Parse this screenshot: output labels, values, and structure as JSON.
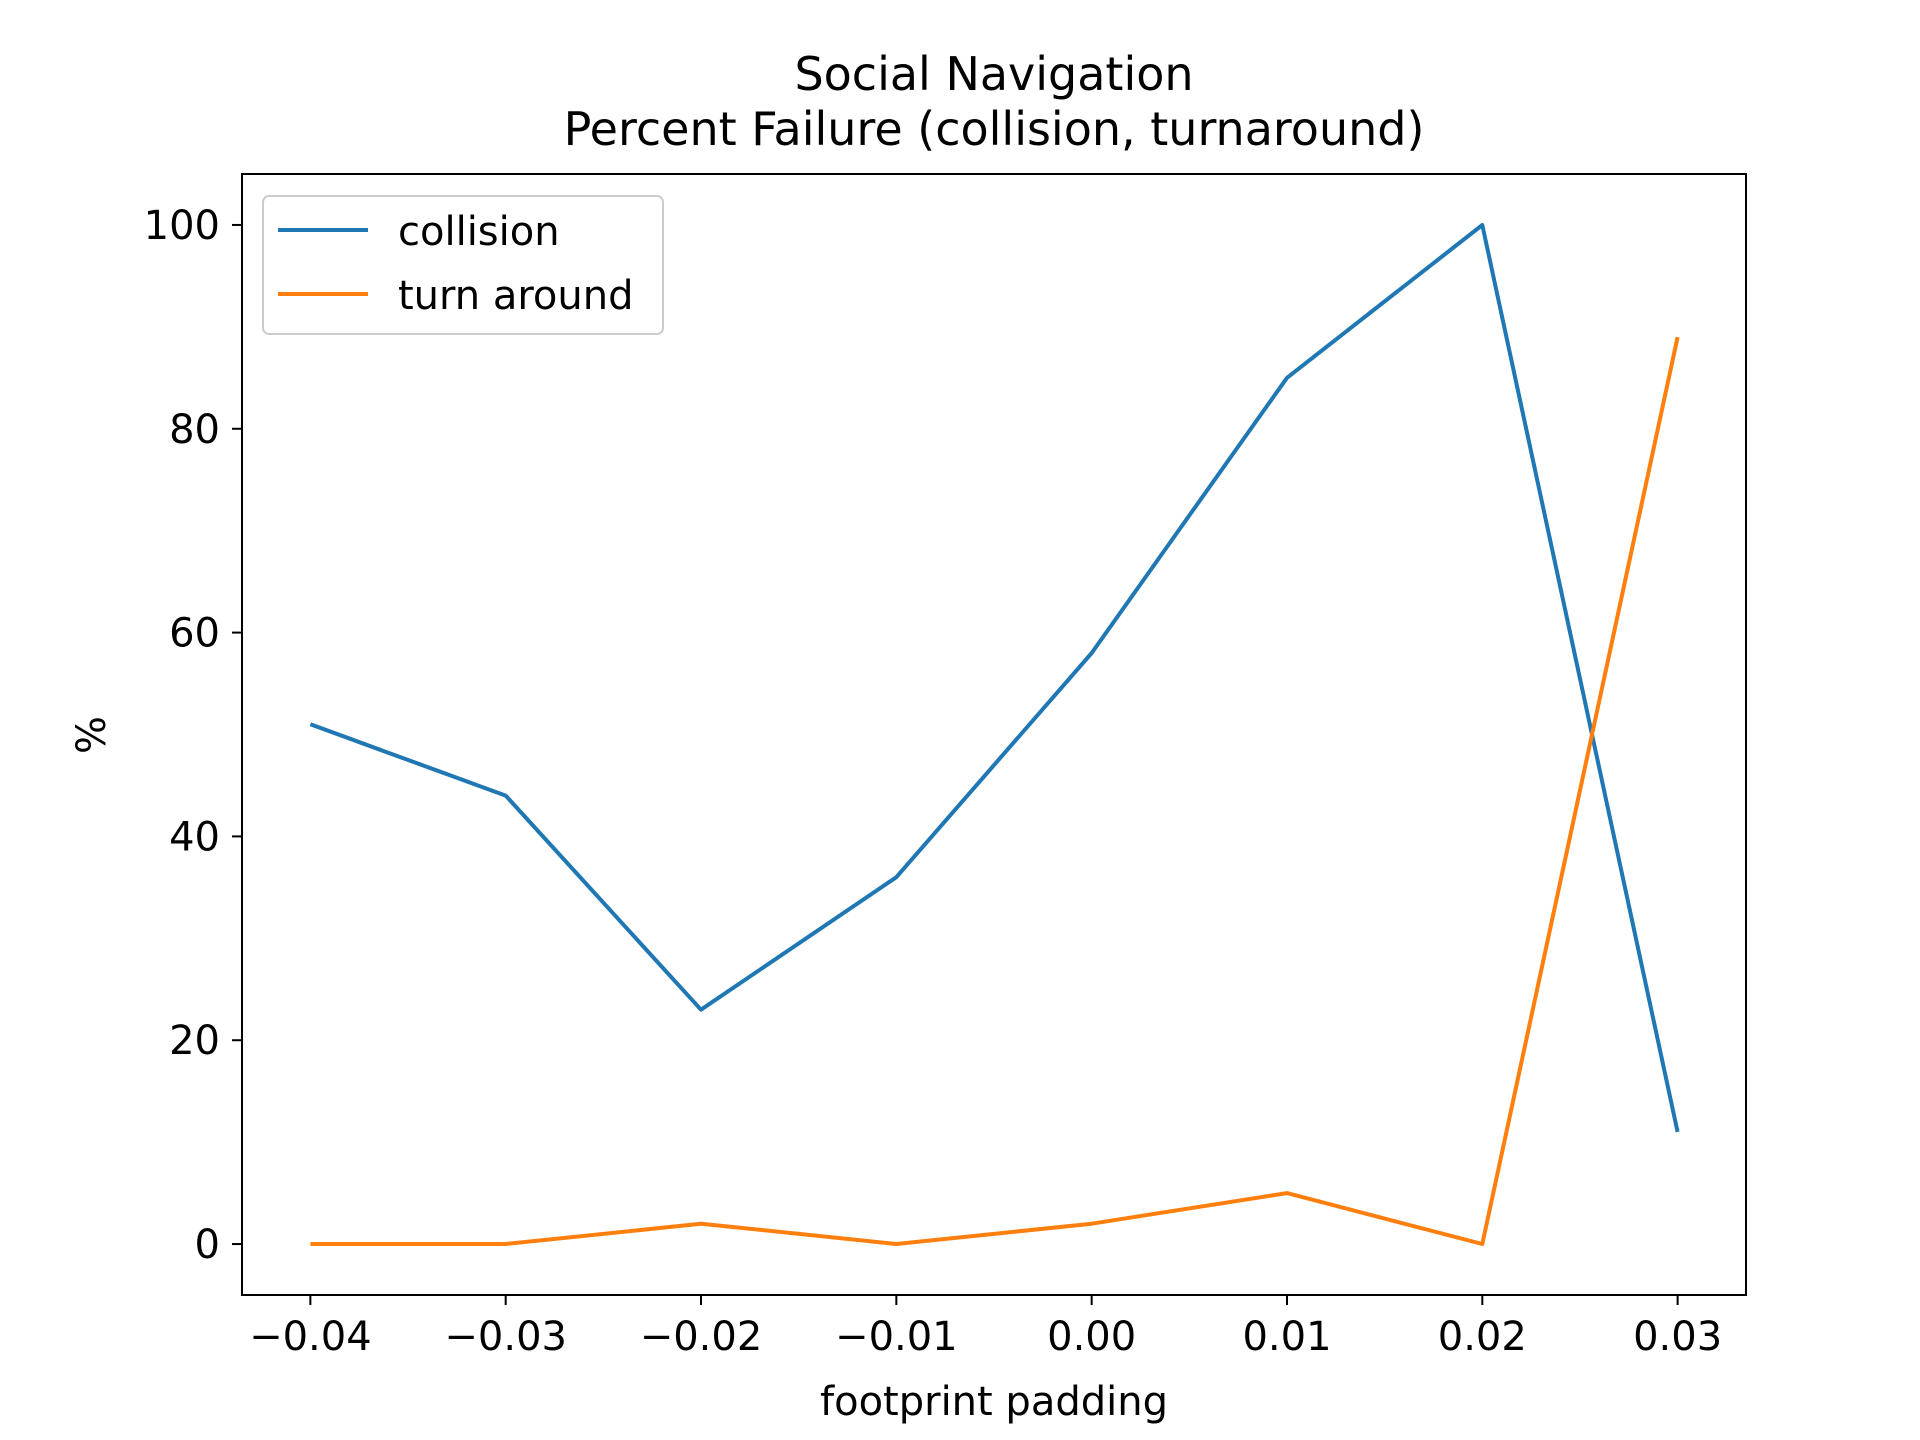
{
  "chart_data": {
    "type": "line",
    "title_line1": "Social Navigation",
    "title_line2": "Percent Failure (collision, turnaround)",
    "xlabel": "footprint padding",
    "ylabel": "%",
    "x": [
      -0.04,
      -0.03,
      -0.02,
      -0.01,
      0.0,
      0.01,
      0.02,
      0.03
    ],
    "xticks": [
      -0.04,
      -0.03,
      -0.02,
      -0.01,
      0.0,
      0.01,
      0.02,
      0.03
    ],
    "xtick_labels": [
      "−0.04",
      "−0.03",
      "−0.02",
      "−0.01",
      "0.00",
      "0.01",
      "0.02",
      "0.03"
    ],
    "yticks": [
      0,
      20,
      40,
      60,
      80,
      100
    ],
    "ytick_labels": [
      "0",
      "20",
      "40",
      "60",
      "80",
      "100"
    ],
    "xlim": [
      -0.0435,
      0.0335
    ],
    "ylim": [
      -5,
      105
    ],
    "grid": false,
    "legend_position": "upper-left",
    "series": [
      {
        "name": "collision",
        "color": "#1f77b4",
        "values": [
          51,
          44,
          23,
          36,
          58,
          85,
          100,
          11
        ]
      },
      {
        "name": "turn around",
        "color": "#ff7f0e",
        "values": [
          0,
          0,
          2,
          0,
          2,
          5,
          0,
          89
        ]
      }
    ]
  }
}
